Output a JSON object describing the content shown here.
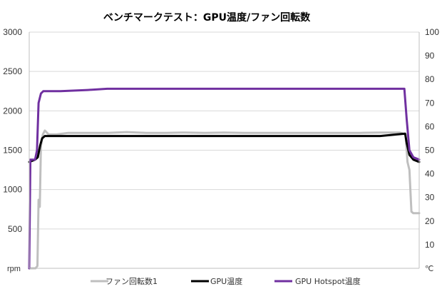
{
  "chart_data": {
    "type": "line",
    "title": "ベンチマークテスト：GPU温度/ファン回転数",
    "left_unit": "rpm",
    "right_unit": "℃",
    "x_range": [
      0,
      100
    ],
    "y_left_range": [
      0,
      3000
    ],
    "y_right_range": [
      0,
      100
    ],
    "grid": "horizontal",
    "legend_position": "bottom",
    "left_ticks": [
      "500",
      "1000",
      "1500",
      "2000",
      "2500",
      "3000"
    ],
    "right_ticks": [
      "10",
      "20",
      "30",
      "40",
      "50",
      "60",
      "70",
      "80",
      "90",
      "100"
    ],
    "series": [
      {
        "name": "ファン回転数1",
        "axis": "left",
        "color": "#bfbfbf",
        "points": [
          [
            0,
            0
          ],
          [
            1.6,
            0
          ],
          [
            2.1,
            30
          ],
          [
            2.4,
            870
          ],
          [
            2.7,
            780
          ],
          [
            3.0,
            1550
          ],
          [
            3.5,
            1700
          ],
          [
            4.0,
            1750
          ],
          [
            5,
            1700
          ],
          [
            7,
            1700
          ],
          [
            10,
            1720
          ],
          [
            15,
            1720
          ],
          [
            20,
            1720
          ],
          [
            25,
            1730
          ],
          [
            30,
            1720
          ],
          [
            35,
            1720
          ],
          [
            40,
            1725
          ],
          [
            45,
            1720
          ],
          [
            50,
            1725
          ],
          [
            55,
            1720
          ],
          [
            60,
            1720
          ],
          [
            65,
            1720
          ],
          [
            70,
            1720
          ],
          [
            75,
            1720
          ],
          [
            80,
            1720
          ],
          [
            85,
            1720
          ],
          [
            90,
            1725
          ],
          [
            95,
            1725
          ],
          [
            96.5,
            1700
          ],
          [
            97,
            1350
          ],
          [
            97.5,
            1250
          ],
          [
            98,
            720
          ],
          [
            98.5,
            700
          ],
          [
            100,
            700
          ]
        ]
      },
      {
        "name": "GPU温度",
        "axis": "right",
        "color": "#000000",
        "points": [
          [
            0,
            45
          ],
          [
            1.5,
            46
          ],
          [
            2.2,
            47
          ],
          [
            2.8,
            52
          ],
          [
            3.3,
            55
          ],
          [
            4,
            56
          ],
          [
            10,
            56
          ],
          [
            20,
            56
          ],
          [
            30,
            56
          ],
          [
            40,
            56
          ],
          [
            50,
            56
          ],
          [
            60,
            56
          ],
          [
            70,
            56
          ],
          [
            80,
            56
          ],
          [
            90,
            56
          ],
          [
            96.4,
            57
          ],
          [
            96.8,
            53
          ],
          [
            97.5,
            48
          ],
          [
            98.5,
            46
          ],
          [
            100,
            45
          ]
        ]
      },
      {
        "name": "GPU Hotspot温度",
        "axis": "right",
        "color": "#7030a0",
        "points": [
          [
            0,
            0
          ],
          [
            0.3,
            46
          ],
          [
            1.5,
            46
          ],
          [
            2.0,
            50
          ],
          [
            2.4,
            70
          ],
          [
            3.0,
            74
          ],
          [
            3.6,
            75
          ],
          [
            8,
            75
          ],
          [
            15,
            75.5
          ],
          [
            20,
            76
          ],
          [
            30,
            76
          ],
          [
            40,
            76
          ],
          [
            50,
            76
          ],
          [
            60,
            76
          ],
          [
            70,
            76
          ],
          [
            80,
            76
          ],
          [
            90,
            76
          ],
          [
            96.2,
            76
          ],
          [
            96.8,
            63
          ],
          [
            97.5,
            50
          ],
          [
            98.5,
            47
          ],
          [
            100,
            46
          ]
        ]
      }
    ]
  }
}
